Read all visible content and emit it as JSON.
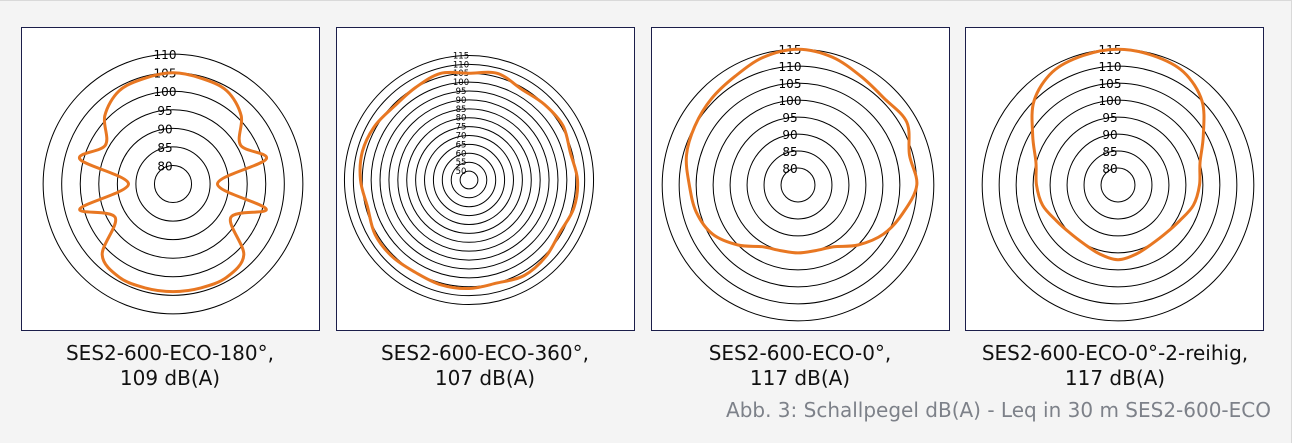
{
  "figure_caption": "Abb. 3: Schallpegel dB(A) - Leq in 30 m SES2-600-ECO",
  "colors": {
    "curve": "#e87722",
    "ring": "#000000",
    "frame": "#1b1e4a",
    "caption": "#7d8189"
  },
  "chart_data": [
    {
      "type": "polar",
      "caption_line1": "SES2-600-ECO-180°,",
      "caption_line2": "109 dB(A)",
      "rings": [
        80,
        85,
        90,
        95,
        100,
        105,
        110
      ],
      "r_min": 75,
      "r_max": 113,
      "theta": [
        0,
        15,
        30,
        45,
        60,
        75,
        90,
        105,
        120,
        135,
        150,
        165,
        180,
        195,
        210,
        225,
        240,
        255,
        270,
        285,
        300,
        315,
        330,
        345
      ],
      "values": [
        105,
        104.5,
        104,
        101,
        96,
        101,
        87,
        101,
        93,
        102,
        104,
        104,
        104,
        104,
        104,
        102,
        93,
        101,
        87,
        101,
        96,
        101,
        104,
        104.5
      ]
    },
    {
      "type": "polar",
      "caption_line1": "SES2-600-ECO-360°,",
      "caption_line2": "107 dB(A)",
      "rings": [
        50,
        55,
        60,
        65,
        70,
        75,
        80,
        85,
        90,
        95,
        100,
        105,
        110,
        115
      ],
      "r_min": 45,
      "r_max": 117.5,
      "theta": [
        0,
        15,
        30,
        45,
        60,
        75,
        90,
        105,
        120,
        135,
        150,
        165,
        180,
        195,
        210,
        225,
        240,
        255,
        270,
        285,
        300,
        315,
        330,
        345
      ],
      "values": [
        105,
        107,
        104,
        105,
        106,
        104,
        106,
        106,
        104,
        106,
        107,
        105,
        106,
        106,
        105,
        106,
        106,
        104,
        106,
        107,
        106,
        104,
        105,
        107
      ]
    },
    {
      "type": "polar",
      "caption_line1": "SES2-600-ECO-0°,",
      "caption_line2": "117 dB(A)",
      "rings": [
        80,
        85,
        90,
        95,
        100,
        105,
        110,
        115
      ],
      "r_min": 75,
      "r_max": 118,
      "theta": [
        0,
        15,
        30,
        45,
        60,
        75,
        90,
        105,
        120,
        135,
        150,
        165,
        180,
        195,
        210,
        225,
        240,
        255,
        270,
        285,
        300,
        315,
        330,
        345
      ],
      "values": [
        115,
        114,
        112,
        111,
        112,
        109,
        110,
        107,
        104,
        100,
        96,
        95,
        95,
        95,
        96,
        100,
        104,
        106,
        107,
        109,
        110,
        111,
        112,
        114
      ]
    },
    {
      "type": "polar",
      "caption_line1": "SES2-600-ECO-0°-2-reihig,",
      "caption_line2": "117 dB(A)",
      "rings": [
        80,
        85,
        90,
        95,
        100,
        105,
        110,
        115
      ],
      "r_min": 75,
      "r_max": 118,
      "theta": [
        0,
        15,
        30,
        45,
        60,
        75,
        90,
        105,
        120,
        135,
        150,
        165,
        180,
        195,
        210,
        225,
        240,
        255,
        270,
        285,
        300,
        315,
        330,
        345
      ],
      "values": [
        115,
        114.5,
        113.5,
        110,
        104,
        100,
        99,
        98,
        96,
        95,
        95,
        96,
        97,
        96,
        95,
        95,
        96,
        98,
        99,
        100,
        104,
        110,
        113.5,
        114.5
      ]
    }
  ]
}
